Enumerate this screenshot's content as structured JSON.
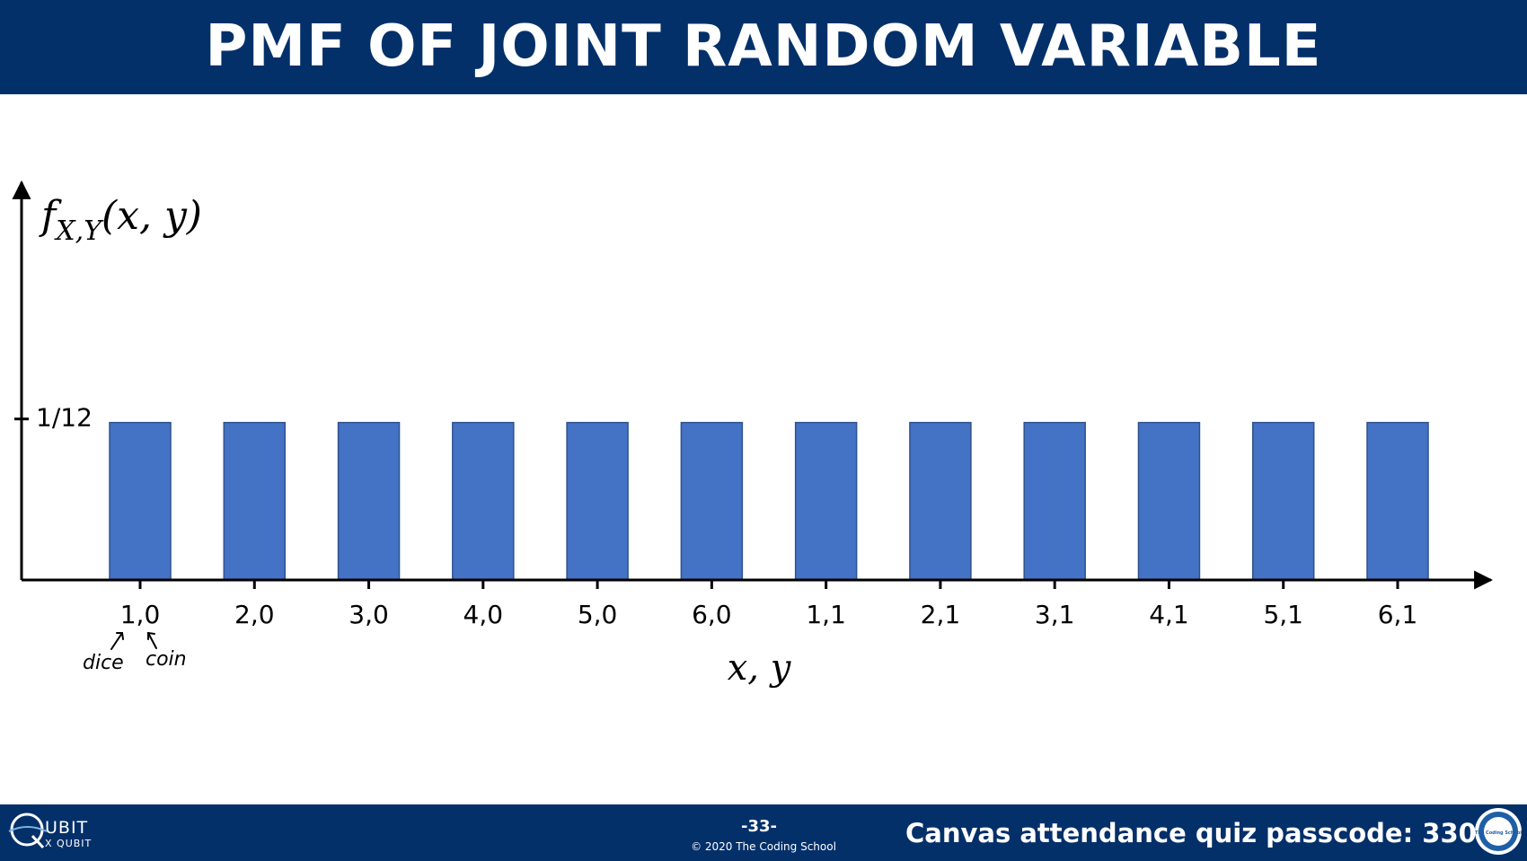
{
  "slide": {
    "title": "PMF OF JOINT RANDOM VARIABLE"
  },
  "chart_data": {
    "type": "bar",
    "categories": [
      "1,0",
      "2,0",
      "3,0",
      "4,0",
      "5,0",
      "6,0",
      "1,1",
      "2,1",
      "3,1",
      "4,1",
      "5,1",
      "6,1"
    ],
    "values": [
      0.0833,
      0.0833,
      0.0833,
      0.0833,
      0.0833,
      0.0833,
      0.0833,
      0.0833,
      0.0833,
      0.0833,
      0.0833,
      0.0833
    ],
    "ylabel_parts": {
      "f": "f",
      "sub": "X,Y",
      "args": "(x, y)"
    },
    "xlabel": "x, y",
    "ytick": {
      "value": 0.0833,
      "label": "1/12"
    },
    "ylim": [
      0,
      0.2
    ],
    "grid": false,
    "legend": "none",
    "bar_color": "#4472c4",
    "annotations": {
      "first": "dice",
      "second": "coin"
    }
  },
  "footer": {
    "logo_main": "UBIT",
    "logo_sub": "X QUBIT",
    "slide_number": "-33-",
    "copyright": "© 2020 The Coding School",
    "passcode": "Canvas attendance quiz passcode: 3308",
    "school_logo": "The Coding School",
    "bg_color": "#04306a"
  }
}
